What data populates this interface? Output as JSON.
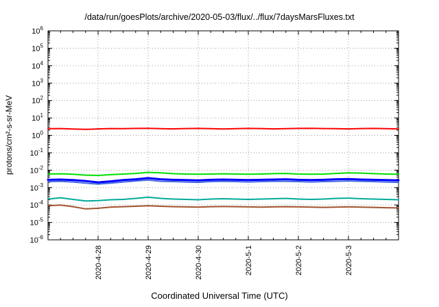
{
  "chart_data": {
    "type": "line",
    "title": "/data/run/goesPlots/archive/2020-05-03/flux/../flux/7daysMarsFluxes.txt",
    "xlabel": "Coordinated Universal Time (UTC)",
    "ylabel": "protons/cm²-s-sr-MeV",
    "xlim": [
      0,
      7
    ],
    "x_step": 0.25,
    "x_ticks": [
      {
        "pos": 1,
        "label": "2020-4-28"
      },
      {
        "pos": 2,
        "label": "2020-4-29"
      },
      {
        "pos": 3,
        "label": "2020-4-30"
      },
      {
        "pos": 4,
        "label": "2020-5-1"
      },
      {
        "pos": 5,
        "label": "2020-5-2"
      },
      {
        "pos": 6,
        "label": "2020-5-3"
      }
    ],
    "ylog_exp_range": [
      -6,
      6
    ],
    "grid": true,
    "legend": "none",
    "series": [
      {
        "name": "red",
        "color": "#ff0000",
        "width": 2,
        "values": [
          2.4,
          2.45,
          2.3,
          2.2,
          2.35,
          2.45,
          2.4,
          2.5,
          2.55,
          2.4,
          2.35,
          2.45,
          2.5,
          2.4,
          2.3,
          2.4,
          2.5,
          2.45,
          2.35,
          2.4,
          2.5,
          2.55,
          2.45,
          2.4,
          2.35,
          2.45,
          2.5,
          2.4,
          2.35
        ]
      },
      {
        "name": "green",
        "color": "#00dd00",
        "width": 2,
        "values": [
          0.006,
          0.0062,
          0.0058,
          0.0052,
          0.005,
          0.0055,
          0.006,
          0.0065,
          0.0075,
          0.007,
          0.0063,
          0.006,
          0.0058,
          0.006,
          0.0062,
          0.006,
          0.0058,
          0.006,
          0.0063,
          0.0065,
          0.006,
          0.0058,
          0.006,
          0.0065,
          0.007,
          0.0068,
          0.0063,
          0.006,
          0.0058
        ]
      },
      {
        "name": "light-blue",
        "color": "#4169e1",
        "width": 2,
        "values": [
          0.0022,
          0.0023,
          0.0021,
          0.0018,
          0.0016,
          0.0018,
          0.0021,
          0.0024,
          0.0027,
          0.0023,
          0.0022,
          0.0021,
          0.002,
          0.0022,
          0.0023,
          0.0022,
          0.0021,
          0.0022,
          0.0023,
          0.0023,
          0.0022,
          0.0021,
          0.0022,
          0.0023,
          0.0024,
          0.0023,
          0.0022,
          0.0021,
          0.002
        ]
      },
      {
        "name": "blue",
        "color": "#0000ff",
        "width": 3,
        "values": [
          0.0028,
          0.0029,
          0.0027,
          0.0024,
          0.002,
          0.0023,
          0.0027,
          0.003,
          0.0035,
          0.003,
          0.0028,
          0.0027,
          0.0026,
          0.0028,
          0.0029,
          0.0028,
          0.0027,
          0.0028,
          0.0029,
          0.003,
          0.0028,
          0.0027,
          0.0028,
          0.003,
          0.0031,
          0.0029,
          0.0028,
          0.0027,
          0.0026
        ]
      },
      {
        "name": "teal",
        "color": "#00aa99",
        "width": 2,
        "values": [
          0.00022,
          0.00026,
          0.00021,
          0.00017,
          0.00018,
          0.0002,
          0.00021,
          0.00024,
          0.00028,
          0.00024,
          0.00022,
          0.00021,
          0.0002,
          0.00022,
          0.00023,
          0.00022,
          0.00021,
          0.00022,
          0.00023,
          0.00024,
          0.00022,
          0.00021,
          0.00022,
          0.00024,
          0.00025,
          0.00023,
          0.00022,
          0.00021,
          0.0002
        ]
      },
      {
        "name": "brown",
        "color": "#a0522d",
        "width": 2,
        "values": [
          9e-05,
          0.0001,
          8e-05,
          6e-05,
          6.5e-05,
          7.5e-05,
          8e-05,
          8.5e-05,
          9e-05,
          8.5e-05,
          8e-05,
          7.8e-05,
          7.5e-05,
          8e-05,
          8.2e-05,
          8e-05,
          7.8e-05,
          7.6e-05,
          7.8e-05,
          8e-05,
          7.8e-05,
          7.5e-05,
          7.3e-05,
          7.5e-05,
          7.8e-05,
          7.6e-05,
          7.3e-05,
          7e-05,
          6.8e-05
        ]
      }
    ]
  },
  "colors": {
    "background": "#ffffff",
    "border": "#000000",
    "grid": "#9a9a9a"
  }
}
